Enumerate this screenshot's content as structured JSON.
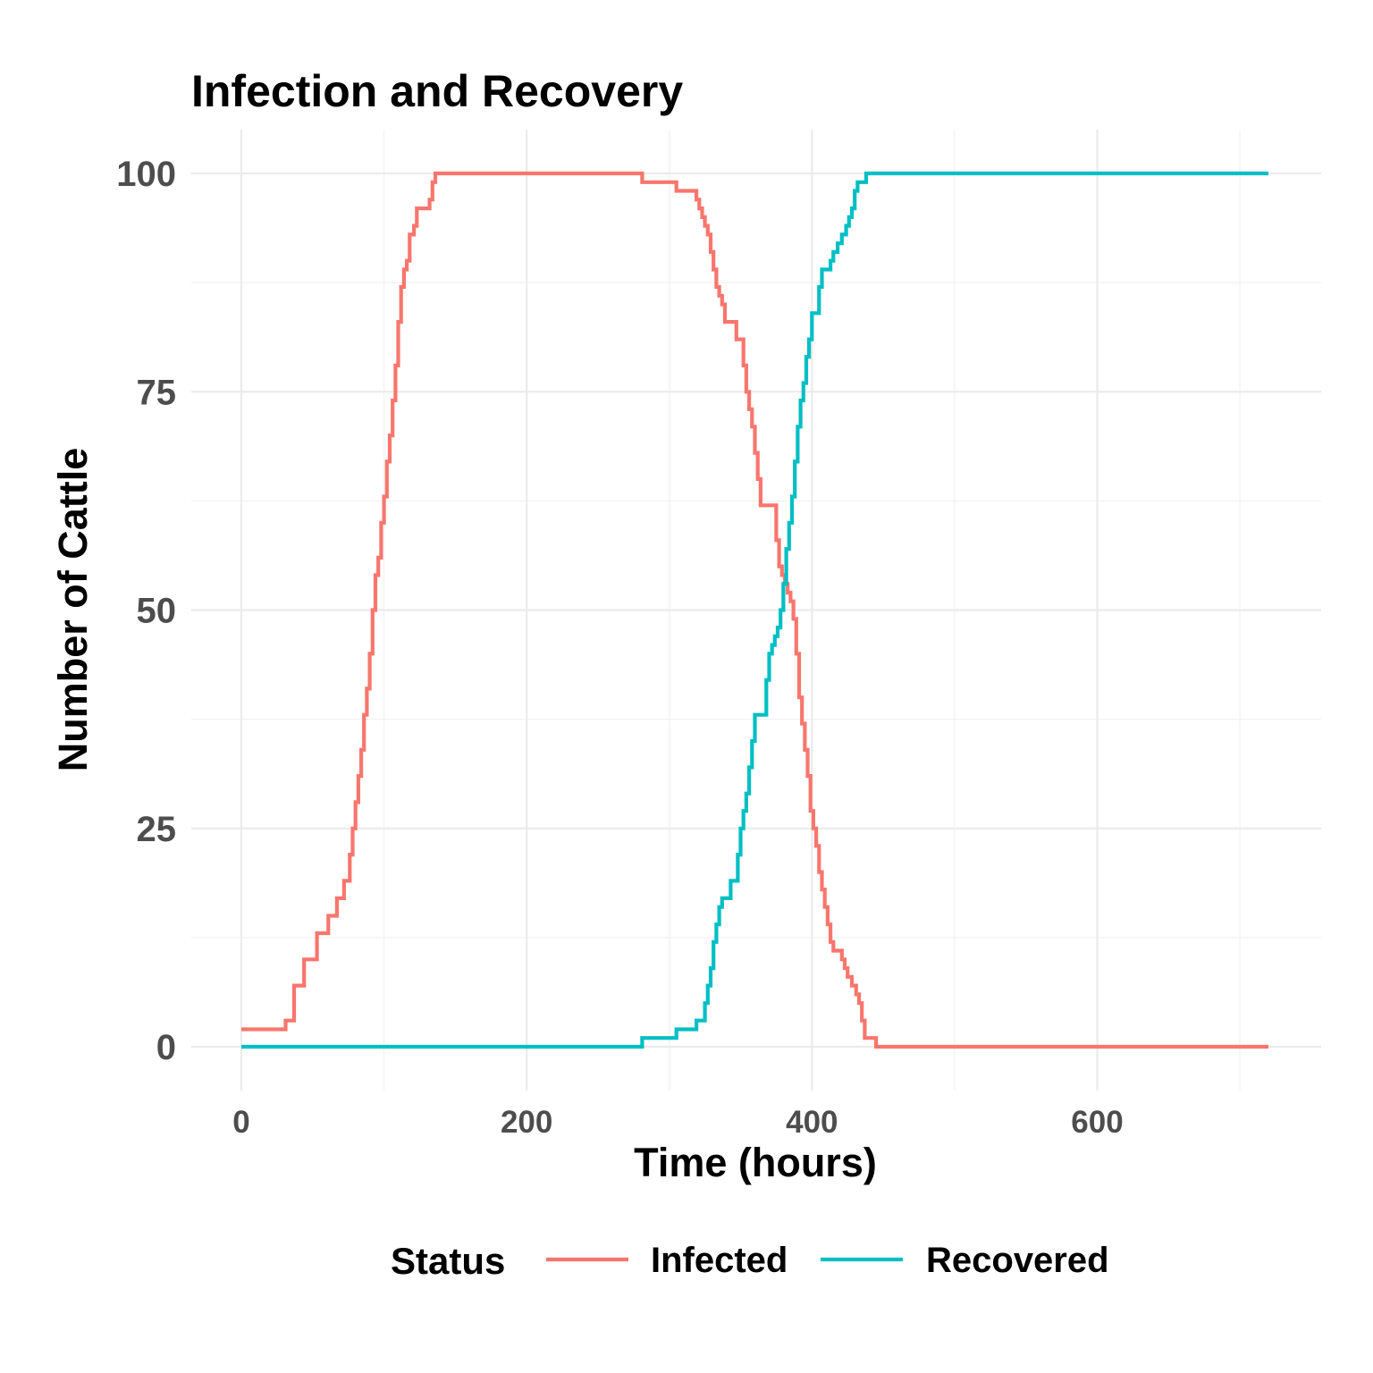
{
  "chart_data": {
    "type": "line",
    "title": "Infection and Recovery",
    "xlabel": "Time (hours)",
    "ylabel": "Number of Cattle",
    "xlim": [
      0,
      720
    ],
    "ylim": [
      0,
      100
    ],
    "x_ticks": [
      "0",
      "200",
      "400",
      "600"
    ],
    "x_tick_values": [
      0,
      200,
      400,
      600
    ],
    "y_ticks": [
      "0",
      "25",
      "50",
      "75",
      "100"
    ],
    "y_tick_values": [
      0,
      25,
      50,
      75,
      100
    ],
    "grid": true,
    "legend": {
      "title": "Status",
      "position": "bottom"
    },
    "step": true,
    "series": [
      {
        "name": "Infected",
        "color": "#F8766D",
        "points": [
          [
            0,
            2
          ],
          [
            30,
            2
          ],
          [
            31,
            3
          ],
          [
            35,
            3
          ],
          [
            37,
            7
          ],
          [
            42,
            7
          ],
          [
            44,
            10
          ],
          [
            51,
            10
          ],
          [
            53,
            13
          ],
          [
            59,
            13
          ],
          [
            61,
            15
          ],
          [
            65,
            15
          ],
          [
            67,
            17
          ],
          [
            70,
            17
          ],
          [
            72,
            19
          ],
          [
            74,
            19
          ],
          [
            76,
            22
          ],
          [
            78,
            25
          ],
          [
            80,
            28
          ],
          [
            82,
            31
          ],
          [
            84,
            34
          ],
          [
            86,
            38
          ],
          [
            88,
            41
          ],
          [
            90,
            45
          ],
          [
            92,
            50
          ],
          [
            94,
            54
          ],
          [
            96,
            56
          ],
          [
            98,
            60
          ],
          [
            100,
            63
          ],
          [
            102,
            67
          ],
          [
            104,
            70
          ],
          [
            106,
            74
          ],
          [
            108,
            78
          ],
          [
            110,
            83
          ],
          [
            112,
            87
          ],
          [
            114,
            89
          ],
          [
            116,
            90
          ],
          [
            118,
            93
          ],
          [
            120,
            93
          ],
          [
            121,
            94
          ],
          [
            123,
            96
          ],
          [
            130,
            96
          ],
          [
            132,
            97
          ],
          [
            134,
            99
          ],
          [
            136,
            100
          ],
          [
            280,
            100
          ],
          [
            281,
            99
          ],
          [
            304,
            99
          ],
          [
            305,
            98
          ],
          [
            317,
            98
          ],
          [
            319,
            97
          ],
          [
            321,
            96
          ],
          [
            323,
            95
          ],
          [
            325,
            94
          ],
          [
            327,
            93
          ],
          [
            329,
            91
          ],
          [
            331,
            89
          ],
          [
            333,
            87
          ],
          [
            335,
            86
          ],
          [
            337,
            85
          ],
          [
            339,
            83
          ],
          [
            345,
            83
          ],
          [
            347,
            81
          ],
          [
            350,
            81
          ],
          [
            352,
            78
          ],
          [
            354,
            75
          ],
          [
            356,
            73
          ],
          [
            358,
            71
          ],
          [
            360,
            68
          ],
          [
            362,
            65
          ],
          [
            364,
            62
          ],
          [
            373,
            62
          ],
          [
            375,
            58
          ],
          [
            377,
            55
          ],
          [
            379,
            54
          ],
          [
            381,
            53
          ],
          [
            383,
            52
          ],
          [
            385,
            51
          ],
          [
            387,
            49
          ],
          [
            389,
            45
          ],
          [
            391,
            40
          ],
          [
            393,
            37
          ],
          [
            395,
            34
          ],
          [
            397,
            31
          ],
          [
            399,
            27
          ],
          [
            401,
            25
          ],
          [
            403,
            23
          ],
          [
            405,
            20
          ],
          [
            407,
            18
          ],
          [
            409,
            16
          ],
          [
            411,
            14
          ],
          [
            413,
            12
          ],
          [
            415,
            11
          ],
          [
            419,
            11
          ],
          [
            421,
            10
          ],
          [
            423,
            9
          ],
          [
            425,
            8
          ],
          [
            428,
            7
          ],
          [
            431,
            6
          ],
          [
            433,
            5
          ],
          [
            435,
            3
          ],
          [
            437,
            1
          ],
          [
            443,
            1
          ],
          [
            445,
            0
          ],
          [
            720,
            0
          ]
        ]
      },
      {
        "name": "Recovered",
        "color": "#00BFC4",
        "points": [
          [
            0,
            0
          ],
          [
            280,
            0
          ],
          [
            281,
            1
          ],
          [
            304,
            1
          ],
          [
            305,
            2
          ],
          [
            317,
            2
          ],
          [
            319,
            3
          ],
          [
            323,
            3
          ],
          [
            325,
            5
          ],
          [
            327,
            7
          ],
          [
            329,
            9
          ],
          [
            331,
            12
          ],
          [
            333,
            14
          ],
          [
            335,
            16
          ],
          [
            337,
            17
          ],
          [
            341,
            17
          ],
          [
            343,
            19
          ],
          [
            346,
            19
          ],
          [
            348,
            22
          ],
          [
            350,
            25
          ],
          [
            352,
            27
          ],
          [
            354,
            29
          ],
          [
            356,
            32
          ],
          [
            358,
            35
          ],
          [
            360,
            38
          ],
          [
            366,
            38
          ],
          [
            368,
            42
          ],
          [
            370,
            45
          ],
          [
            372,
            46
          ],
          [
            374,
            47
          ],
          [
            376,
            48
          ],
          [
            378,
            50
          ],
          [
            380,
            53
          ],
          [
            382,
            57
          ],
          [
            384,
            60
          ],
          [
            386,
            63
          ],
          [
            388,
            67
          ],
          [
            390,
            71
          ],
          [
            392,
            74
          ],
          [
            394,
            76
          ],
          [
            396,
            79
          ],
          [
            398,
            81
          ],
          [
            400,
            84
          ],
          [
            403,
            84
          ],
          [
            405,
            87
          ],
          [
            407,
            89
          ],
          [
            411,
            89
          ],
          [
            413,
            90
          ],
          [
            415,
            91
          ],
          [
            418,
            92
          ],
          [
            421,
            93
          ],
          [
            424,
            94
          ],
          [
            426,
            95
          ],
          [
            428,
            96
          ],
          [
            430,
            98
          ],
          [
            432,
            99
          ],
          [
            436,
            99
          ],
          [
            438,
            100
          ],
          [
            720,
            100
          ]
        ]
      }
    ]
  }
}
